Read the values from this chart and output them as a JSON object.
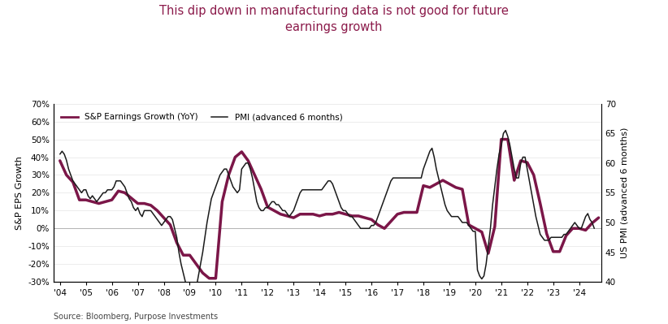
{
  "title": "This dip down in manufacturing data is not good for future\nearnings growth",
  "title_color": "#8B1A4A",
  "source": "Source: Bloomberg, Purpose Investments",
  "ylabel_left": "S&P EPS Growth",
  "ylabel_right": "US PMI (advanced 6 months)",
  "ylim_left": [
    -0.3,
    0.7
  ],
  "ylim_right": [
    40,
    70
  ],
  "yticks_left": [
    -0.3,
    -0.2,
    -0.1,
    0.0,
    0.1,
    0.2,
    0.3,
    0.4,
    0.5,
    0.6,
    0.7
  ],
  "ytick_labels_left": [
    "-30%",
    "-20%",
    "-10%",
    "0%",
    "10%",
    "20%",
    "30%",
    "40%",
    "50%",
    "60%",
    "70%"
  ],
  "yticks_right": [
    40,
    45,
    50,
    55,
    60,
    65,
    70
  ],
  "background_color": "#ffffff",
  "sp_color": "#7B1648",
  "pmi_color": "#1a1a1a",
  "sp_linewidth": 2.5,
  "pmi_linewidth": 1.1,
  "sp_label": "S&P Earnings Growth (YoY)",
  "pmi_label": "PMI (advanced 6 months)",
  "sp_dates": [
    2004.0,
    2004.25,
    2004.5,
    2004.75,
    2005.0,
    2005.25,
    2005.5,
    2005.75,
    2006.0,
    2006.25,
    2006.5,
    2006.75,
    2007.0,
    2007.25,
    2007.5,
    2007.75,
    2008.0,
    2008.25,
    2008.5,
    2008.75,
    2009.0,
    2009.25,
    2009.5,
    2009.75,
    2010.0,
    2010.25,
    2010.5,
    2010.75,
    2011.0,
    2011.25,
    2011.5,
    2011.75,
    2012.0,
    2012.25,
    2012.5,
    2012.75,
    2013.0,
    2013.25,
    2013.5,
    2013.75,
    2014.0,
    2014.25,
    2014.5,
    2014.75,
    2015.0,
    2015.25,
    2015.5,
    2015.75,
    2016.0,
    2016.25,
    2016.5,
    2016.75,
    2017.0,
    2017.25,
    2017.5,
    2017.75,
    2018.0,
    2018.25,
    2018.5,
    2018.75,
    2019.0,
    2019.25,
    2019.5,
    2019.75,
    2020.0,
    2020.25,
    2020.5,
    2020.75,
    2021.0,
    2021.25,
    2021.5,
    2021.75,
    2022.0,
    2022.25,
    2022.5,
    2022.75,
    2023.0,
    2023.25,
    2023.5,
    2023.75,
    2024.0,
    2024.25,
    2024.5,
    2024.75
  ],
  "sp_values": [
    0.38,
    0.3,
    0.26,
    0.16,
    0.16,
    0.15,
    0.14,
    0.15,
    0.16,
    0.21,
    0.2,
    0.17,
    0.14,
    0.14,
    0.13,
    0.1,
    0.06,
    0.02,
    -0.08,
    -0.15,
    -0.15,
    -0.2,
    -0.25,
    -0.28,
    -0.28,
    0.15,
    0.3,
    0.4,
    0.43,
    0.38,
    0.3,
    0.22,
    0.12,
    0.1,
    0.08,
    0.07,
    0.06,
    0.08,
    0.08,
    0.08,
    0.07,
    0.08,
    0.08,
    0.09,
    0.08,
    0.07,
    0.07,
    0.06,
    0.05,
    0.02,
    0.0,
    0.04,
    0.08,
    0.09,
    0.09,
    0.09,
    0.24,
    0.23,
    0.25,
    0.27,
    0.25,
    0.23,
    0.22,
    0.02,
    0.0,
    -0.02,
    -0.14,
    0.01,
    0.5,
    0.5,
    0.27,
    0.38,
    0.37,
    0.3,
    0.14,
    -0.03,
    -0.13,
    -0.13,
    -0.04,
    0.0,
    0.0,
    -0.01,
    0.03,
    0.06
  ],
  "pmi_dates": [
    2004.0,
    2004.083,
    2004.167,
    2004.25,
    2004.333,
    2004.417,
    2004.5,
    2004.583,
    2004.667,
    2004.75,
    2004.833,
    2004.917,
    2005.0,
    2005.083,
    2005.167,
    2005.25,
    2005.333,
    2005.417,
    2005.5,
    2005.583,
    2005.667,
    2005.75,
    2005.833,
    2005.917,
    2006.0,
    2006.083,
    2006.167,
    2006.25,
    2006.333,
    2006.417,
    2006.5,
    2006.583,
    2006.667,
    2006.75,
    2006.833,
    2006.917,
    2007.0,
    2007.083,
    2007.167,
    2007.25,
    2007.333,
    2007.417,
    2007.5,
    2007.583,
    2007.667,
    2007.75,
    2007.833,
    2007.917,
    2008.0,
    2008.083,
    2008.167,
    2008.25,
    2008.333,
    2008.417,
    2008.5,
    2008.583,
    2008.667,
    2008.75,
    2008.833,
    2008.917,
    2009.0,
    2009.083,
    2009.167,
    2009.25,
    2009.333,
    2009.417,
    2009.5,
    2009.583,
    2009.667,
    2009.75,
    2009.833,
    2009.917,
    2010.0,
    2010.083,
    2010.167,
    2010.25,
    2010.333,
    2010.417,
    2010.5,
    2010.583,
    2010.667,
    2010.75,
    2010.833,
    2010.917,
    2011.0,
    2011.083,
    2011.167,
    2011.25,
    2011.333,
    2011.417,
    2011.5,
    2011.583,
    2011.667,
    2011.75,
    2011.833,
    2011.917,
    2012.0,
    2012.083,
    2012.167,
    2012.25,
    2012.333,
    2012.417,
    2012.5,
    2012.583,
    2012.667,
    2012.75,
    2012.833,
    2012.917,
    2013.0,
    2013.083,
    2013.167,
    2013.25,
    2013.333,
    2013.417,
    2013.5,
    2013.583,
    2013.667,
    2013.75,
    2013.833,
    2013.917,
    2014.0,
    2014.083,
    2014.167,
    2014.25,
    2014.333,
    2014.417,
    2014.5,
    2014.583,
    2014.667,
    2014.75,
    2014.833,
    2014.917,
    2015.0,
    2015.083,
    2015.167,
    2015.25,
    2015.333,
    2015.417,
    2015.5,
    2015.583,
    2015.667,
    2015.75,
    2015.833,
    2015.917,
    2016.0,
    2016.083,
    2016.167,
    2016.25,
    2016.333,
    2016.417,
    2016.5,
    2016.583,
    2016.667,
    2016.75,
    2016.833,
    2016.917,
    2017.0,
    2017.083,
    2017.167,
    2017.25,
    2017.333,
    2017.417,
    2017.5,
    2017.583,
    2017.667,
    2017.75,
    2017.833,
    2017.917,
    2018.0,
    2018.083,
    2018.167,
    2018.25,
    2018.333,
    2018.417,
    2018.5,
    2018.583,
    2018.667,
    2018.75,
    2018.833,
    2018.917,
    2019.0,
    2019.083,
    2019.167,
    2019.25,
    2019.333,
    2019.417,
    2019.5,
    2019.583,
    2019.667,
    2019.75,
    2019.833,
    2019.917,
    2020.0,
    2020.083,
    2020.167,
    2020.25,
    2020.333,
    2020.417,
    2020.5,
    2020.583,
    2020.667,
    2020.75,
    2020.833,
    2020.917,
    2021.0,
    2021.083,
    2021.167,
    2021.25,
    2021.333,
    2021.417,
    2021.5,
    2021.583,
    2021.667,
    2021.75,
    2021.833,
    2021.917,
    2022.0,
    2022.083,
    2022.167,
    2022.25,
    2022.333,
    2022.417,
    2022.5,
    2022.583,
    2022.667,
    2022.75,
    2022.833,
    2022.917,
    2023.0,
    2023.083,
    2023.167,
    2023.25,
    2023.333,
    2023.417,
    2023.5,
    2023.583,
    2023.667,
    2023.75,
    2023.833,
    2023.917,
    2024.0,
    2024.083,
    2024.167,
    2024.25,
    2024.333,
    2024.417,
    2024.5,
    2024.583
  ],
  "pmi_values": [
    61.5,
    62.0,
    61.5,
    60.5,
    59.0,
    58.0,
    57.0,
    56.5,
    56.0,
    55.5,
    55.0,
    55.5,
    55.5,
    54.5,
    54.0,
    54.5,
    54.0,
    53.5,
    54.0,
    54.5,
    55.0,
    55.0,
    55.5,
    55.5,
    55.5,
    56.0,
    57.0,
    57.0,
    57.0,
    56.5,
    56.0,
    55.0,
    54.0,
    53.5,
    52.5,
    52.0,
    52.5,
    51.5,
    51.0,
    52.0,
    52.0,
    52.0,
    52.0,
    51.5,
    51.0,
    50.5,
    50.0,
    49.5,
    50.0,
    50.5,
    51.0,
    51.0,
    50.5,
    49.0,
    47.5,
    45.0,
    43.0,
    41.5,
    40.0,
    38.5,
    38.0,
    37.5,
    37.5,
    39.0,
    41.0,
    43.0,
    45.0,
    47.5,
    50.0,
    52.0,
    54.0,
    55.0,
    56.0,
    57.0,
    58.0,
    58.5,
    59.0,
    59.0,
    58.0,
    57.0,
    56.0,
    55.5,
    55.0,
    55.5,
    59.0,
    59.5,
    60.0,
    60.0,
    59.0,
    57.5,
    55.5,
    53.5,
    52.5,
    52.0,
    52.0,
    52.5,
    52.5,
    53.0,
    53.5,
    53.5,
    53.0,
    53.0,
    52.5,
    52.0,
    52.0,
    51.5,
    51.0,
    51.5,
    52.0,
    53.0,
    54.0,
    55.0,
    55.5,
    55.5,
    55.5,
    55.5,
    55.5,
    55.5,
    55.5,
    55.5,
    55.5,
    55.5,
    56.0,
    56.5,
    57.0,
    57.0,
    56.5,
    55.5,
    54.5,
    53.5,
    52.5,
    52.0,
    52.0,
    51.5,
    51.0,
    51.0,
    50.5,
    50.0,
    49.5,
    49.0,
    49.0,
    49.0,
    49.0,
    49.0,
    49.5,
    49.5,
    50.0,
    51.0,
    52.0,
    53.0,
    54.0,
    55.0,
    56.0,
    57.0,
    57.5,
    57.5,
    57.5,
    57.5,
    57.5,
    57.5,
    57.5,
    57.5,
    57.5,
    57.5,
    57.5,
    57.5,
    57.5,
    57.5,
    59.0,
    60.0,
    61.0,
    62.0,
    62.5,
    61.0,
    59.0,
    57.5,
    56.0,
    54.5,
    53.0,
    52.0,
    51.5,
    51.0,
    51.0,
    51.0,
    51.0,
    50.5,
    50.0,
    50.0,
    50.0,
    49.5,
    49.0,
    48.5,
    48.5,
    42.0,
    41.0,
    40.5,
    41.0,
    43.0,
    46.0,
    49.0,
    53.0,
    56.0,
    59.0,
    61.5,
    63.0,
    65.0,
    65.5,
    64.5,
    63.0,
    61.0,
    59.0,
    57.5,
    57.5,
    60.0,
    61.0,
    61.0,
    59.0,
    57.0,
    55.0,
    53.0,
    51.0,
    49.5,
    48.0,
    47.5,
    47.0,
    47.0,
    47.0,
    47.5,
    47.5,
    47.5,
    47.5,
    47.5,
    47.5,
    48.0,
    48.0,
    48.5,
    49.0,
    49.5,
    50.0,
    49.5,
    49.0,
    49.0,
    50.0,
    51.0,
    51.5,
    50.5,
    50.0,
    49.0
  ]
}
